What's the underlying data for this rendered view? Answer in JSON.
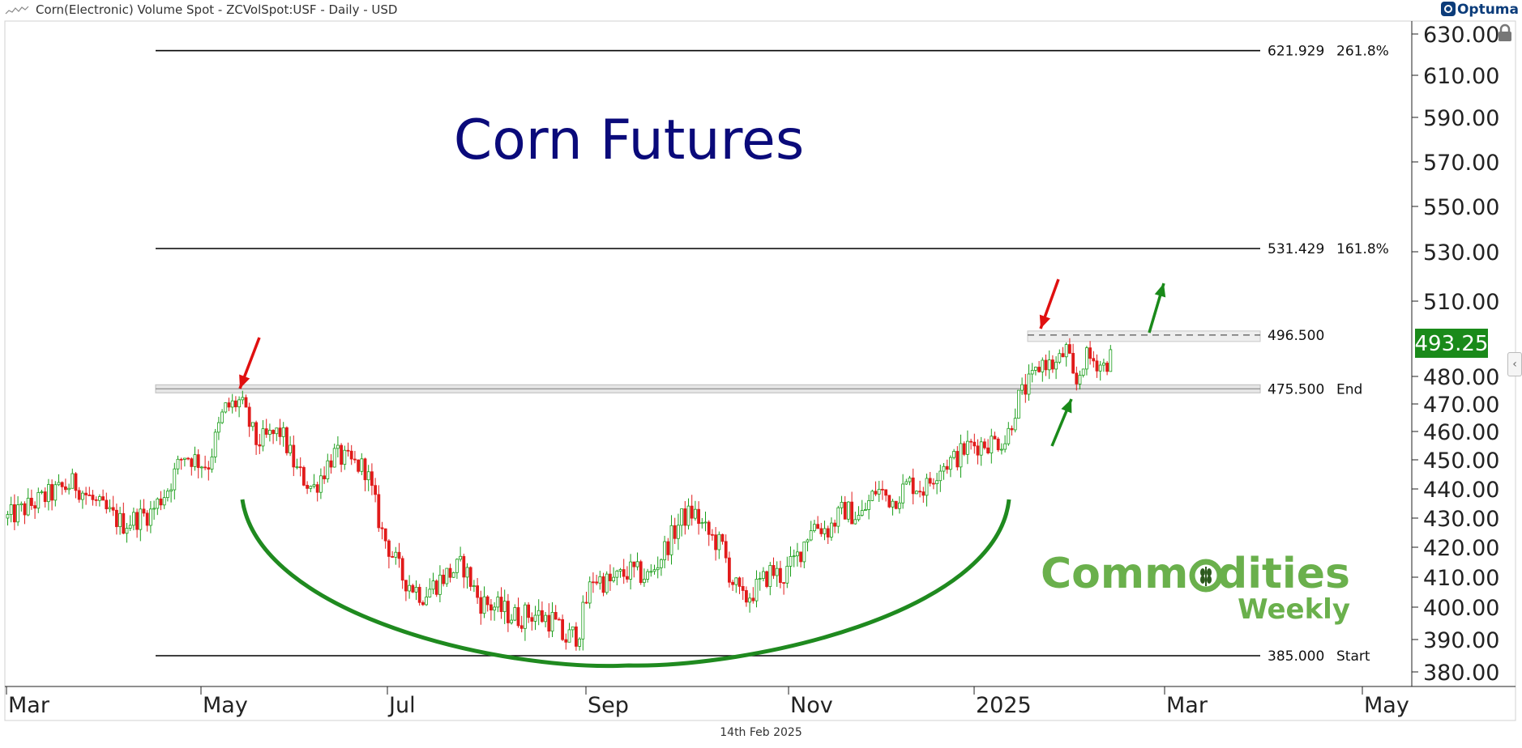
{
  "header": {
    "title": "Corn(Electronic) Volume Spot - ZCVolSpot:USF - Daily - USD",
    "brand": "Optuma"
  },
  "annotation_title": "Corn Futures",
  "logo": {
    "line1_part1": "Comm",
    "line1_part2": "dities",
    "line2": "Weekly"
  },
  "footer": {
    "date": "14th Feb 2025"
  },
  "colors": {
    "up_candle": "#1a9e1a",
    "down_candle": "#e11b1b",
    "title_color": "#0a0a7a",
    "arc_color": "#1f8a1f",
    "logo_green": "#6ab04c",
    "price_badge": "#1a8a1a"
  },
  "chart_data": {
    "type": "candlestick",
    "title": "Corn(Electronic) Volume Spot - ZCVolSpot:USF - Daily - USD",
    "ylim": [
      375,
      635
    ],
    "y_ticks": [
      "630.00",
      "610.00",
      "590.00",
      "570.00",
      "550.00",
      "530.00",
      "510.00",
      "480.00",
      "470.00",
      "460.00",
      "450.00",
      "440.00",
      "430.00",
      "420.00",
      "410.00",
      "400.00",
      "390.00",
      "380.00"
    ],
    "x_ticks": [
      "Mar",
      "May",
      "Jul",
      "Sep",
      "Nov",
      "2025",
      "Mar",
      "May"
    ],
    "last_price": "493.25",
    "series": [
      {
        "name": "ZCVolSpot:USF",
        "approx_closes_by_month": [
          {
            "month": "Mar",
            "close": 433
          },
          {
            "month": "Apr",
            "close": 440
          },
          {
            "month": "May",
            "close": 470
          },
          {
            "month": "Jun",
            "close": 455
          },
          {
            "month": "Jul",
            "close": 407
          },
          {
            "month": "Aug",
            "close": 397
          },
          {
            "month": "Sep",
            "close": 408
          },
          {
            "month": "Oct",
            "close": 412
          },
          {
            "month": "Nov",
            "close": 428
          },
          {
            "month": "Dec",
            "close": 448
          },
          {
            "month": "Jan",
            "close": 488
          },
          {
            "month": "Feb",
            "close": 493.25
          }
        ]
      }
    ],
    "levels": [
      {
        "value": "621.929",
        "label": "261.8%"
      },
      {
        "value": "531.429",
        "label": "161.8%"
      },
      {
        "value": "496.500",
        "label": ""
      },
      {
        "value": "475.500",
        "label": "End"
      },
      {
        "value": "385.000",
        "label": "Start"
      }
    ]
  }
}
